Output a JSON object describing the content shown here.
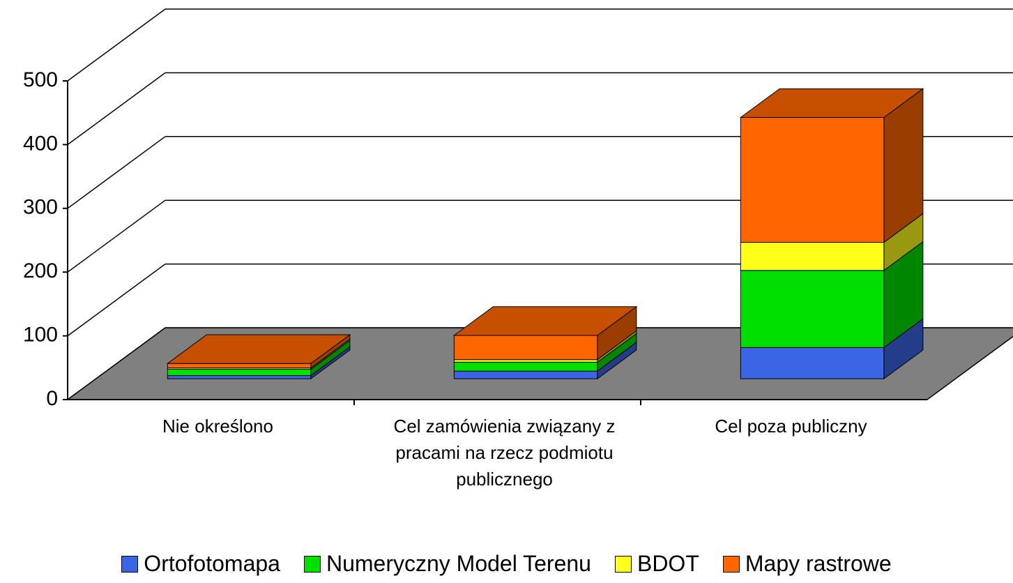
{
  "chart_data": {
    "type": "bar3d_stacked",
    "categories": [
      "Nie określono",
      "Cel zamówienia związany z pracami na rzecz podmiotu publicznego",
      "Cel poza publiczny"
    ],
    "series": [
      {
        "name": "Ortofotomapa",
        "color": "#3a66e6",
        "values": [
          5,
          12,
          49
        ]
      },
      {
        "name": "Numeryczny Model Terenu",
        "color": "#00e000",
        "values": [
          10,
          14,
          121
        ]
      },
      {
        "name": "BDOT",
        "color": "#ffff1a",
        "values": [
          2,
          4,
          44
        ]
      },
      {
        "name": "Mapy rastrowe",
        "color": "#ff6600",
        "values": [
          7,
          38,
          196
        ]
      }
    ],
    "ylim": [
      0,
      500
    ],
    "yticks": [
      0,
      100,
      200,
      300,
      400,
      500
    ],
    "grid": true,
    "legend": "bottom"
  }
}
